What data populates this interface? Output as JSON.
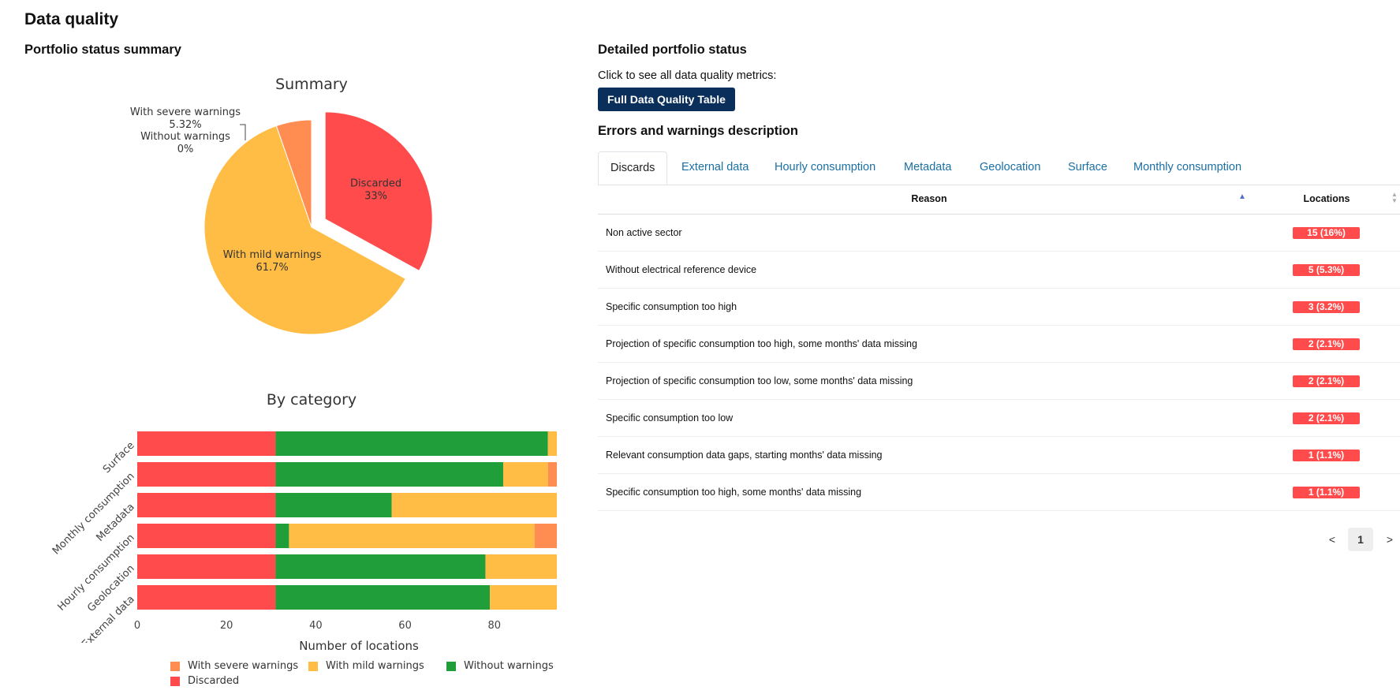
{
  "page": {
    "title": "Data quality"
  },
  "left": {
    "section_title": "Portfolio status summary",
    "pie_title": "Summary",
    "bar_title": "By category",
    "x_axis_title": "Number of locations"
  },
  "right": {
    "section_title": "Detailed portfolio status",
    "click_text": "Click to see all data quality metrics:",
    "button_label": "Full Data Quality Table",
    "errors_title": "Errors and warnings description",
    "tabs": [
      {
        "label": "Discards",
        "active": true
      },
      {
        "label": "External data"
      },
      {
        "label": "Hourly consumption"
      },
      {
        "label": "Metadata"
      },
      {
        "label": "Geolocation"
      },
      {
        "label": "Surface"
      },
      {
        "label": "Monthly consumption"
      }
    ],
    "table": {
      "headers": {
        "reason": "Reason",
        "locations": "Locations"
      },
      "rows": [
        {
          "reason": "Non active sector",
          "locations": "15 (16%)"
        },
        {
          "reason": "Without electrical reference device",
          "locations": "5 (5.3%)"
        },
        {
          "reason": "Specific consumption too high",
          "locations": "3 (3.2%)"
        },
        {
          "reason": "Projection of specific consumption too high, some months' data missing",
          "locations": "2 (2.1%)"
        },
        {
          "reason": "Projection of specific consumption too low, some months' data missing",
          "locations": "2 (2.1%)"
        },
        {
          "reason": "Specific consumption too low",
          "locations": "2 (2.1%)"
        },
        {
          "reason": "Relevant consumption data gaps, starting months' data missing",
          "locations": "1 (1.1%)"
        },
        {
          "reason": "Specific consumption too high, some months' data missing",
          "locations": "1 (1.1%)"
        }
      ]
    },
    "pagination": {
      "prev": "<",
      "current": "1",
      "next": ">"
    }
  },
  "colors": {
    "discarded": "#ff4b4b",
    "mild": "#ffbd45",
    "without": "#1f9e3a",
    "severe": "#ff8c50",
    "button": "#0b2f5b",
    "tab_link": "#1a6fa3"
  },
  "chart_data": [
    {
      "type": "pie",
      "title": "Summary",
      "slices": [
        {
          "label": "Discarded",
          "value": 33,
          "text": "33%",
          "pulled": true
        },
        {
          "label": "With mild warnings",
          "value": 61.7,
          "text": "61.7%"
        },
        {
          "label": "With severe warnings",
          "value": 5.32,
          "text": "5.32%"
        },
        {
          "label": "Without warnings",
          "value": 0,
          "text": "0%"
        }
      ]
    },
    {
      "type": "bar",
      "orientation": "horizontal",
      "stacked": true,
      "title": "By category",
      "xlabel": "Number of locations",
      "categories": [
        "Surface",
        "Monthly consumption",
        "Metadata",
        "Hourly consumption",
        "Geolocation",
        "External data"
      ],
      "xlim": [
        0,
        94
      ],
      "xticks": [
        0,
        20,
        40,
        60,
        80
      ],
      "legend_position": "bottom",
      "legend": [
        "With severe warnings",
        "With mild warnings",
        "Without warnings",
        "Discarded"
      ],
      "series": [
        {
          "name": "Discarded",
          "values": [
            31,
            31,
            31,
            31,
            31,
            31
          ]
        },
        {
          "name": "Without warnings",
          "values": [
            61,
            51,
            26,
            3,
            47,
            48
          ]
        },
        {
          "name": "With mild warnings",
          "values": [
            2,
            10,
            37,
            55,
            16,
            15
          ]
        },
        {
          "name": "With severe warnings",
          "values": [
            0,
            2,
            0,
            5,
            0,
            0
          ]
        }
      ]
    }
  ]
}
